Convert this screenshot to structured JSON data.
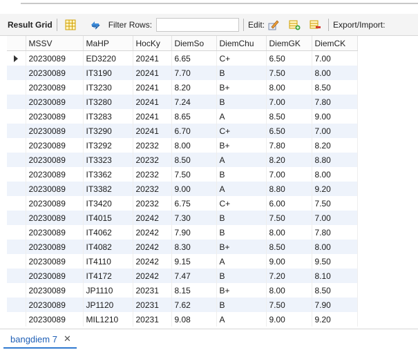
{
  "toolbar": {
    "result_grid_label": "Result Grid",
    "filter_rows_label": "Filter Rows:",
    "filter_value": "",
    "edit_label": "Edit:",
    "export_label": "Export/Import:"
  },
  "table": {
    "columns": [
      "MSSV",
      "MaHP",
      "HocKy",
      "DiemSo",
      "DiemChu",
      "DiemGK",
      "DiemCK"
    ],
    "rows": [
      [
        "20230089",
        "ED3220",
        "20241",
        "6.65",
        "C+",
        "6.50",
        "7.00"
      ],
      [
        "20230089",
        "IT3190",
        "20241",
        "7.70",
        "B",
        "7.50",
        "8.00"
      ],
      [
        "20230089",
        "IT3230",
        "20241",
        "8.20",
        "B+",
        "8.00",
        "8.50"
      ],
      [
        "20230089",
        "IT3280",
        "20241",
        "7.24",
        "B",
        "7.00",
        "7.80"
      ],
      [
        "20230089",
        "IT3283",
        "20241",
        "8.65",
        "A",
        "8.50",
        "9.00"
      ],
      [
        "20230089",
        "IT3290",
        "20241",
        "6.70",
        "C+",
        "6.50",
        "7.00"
      ],
      [
        "20230089",
        "IT3292",
        "20232",
        "8.00",
        "B+",
        "7.80",
        "8.20"
      ],
      [
        "20230089",
        "IT3323",
        "20232",
        "8.50",
        "A",
        "8.20",
        "8.80"
      ],
      [
        "20230089",
        "IT3362",
        "20232",
        "7.50",
        "B",
        "7.00",
        "8.00"
      ],
      [
        "20230089",
        "IT3382",
        "20232",
        "9.00",
        "A",
        "8.80",
        "9.20"
      ],
      [
        "20230089",
        "IT3420",
        "20232",
        "6.75",
        "C+",
        "6.00",
        "7.50"
      ],
      [
        "20230089",
        "IT4015",
        "20242",
        "7.30",
        "B",
        "7.50",
        "7.00"
      ],
      [
        "20230089",
        "IT4062",
        "20242",
        "7.90",
        "B",
        "8.00",
        "7.80"
      ],
      [
        "20230089",
        "IT4082",
        "20242",
        "8.30",
        "B+",
        "8.50",
        "8.00"
      ],
      [
        "20230089",
        "IT4110",
        "20242",
        "9.15",
        "A",
        "9.00",
        "9.50"
      ],
      [
        "20230089",
        "IT4172",
        "20242",
        "7.47",
        "B",
        "7.20",
        "8.10"
      ],
      [
        "20230089",
        "JP1110",
        "20231",
        "8.15",
        "B+",
        "8.00",
        "8.50"
      ],
      [
        "20230089",
        "JP1120",
        "20231",
        "7.62",
        "B",
        "7.50",
        "7.90"
      ],
      [
        "20230089",
        "MIL1210",
        "20231",
        "9.08",
        "A",
        "9.00",
        "9.20"
      ]
    ]
  },
  "tab": {
    "label": "bangdiem 7",
    "close_symbol": "✕"
  },
  "colors": {
    "accent": "#2f79d0",
    "row_alt": "#eef3fb",
    "toolbar_bg": "#f4f4f4"
  }
}
